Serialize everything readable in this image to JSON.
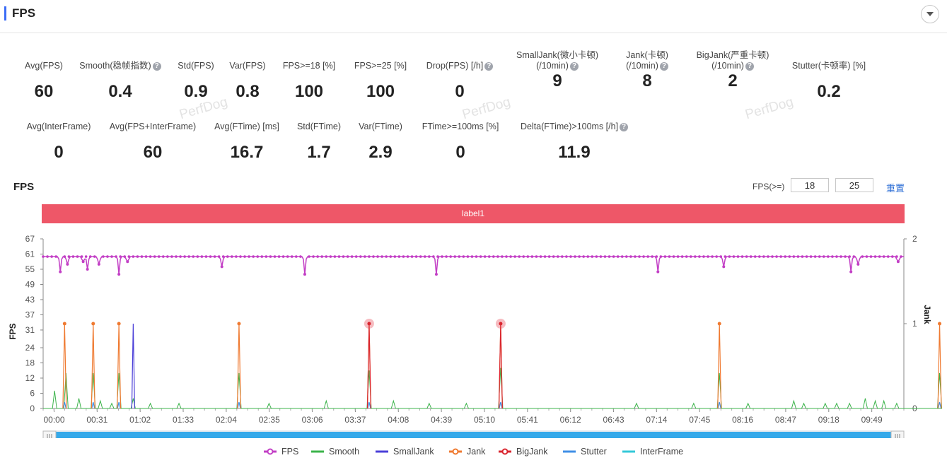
{
  "header": {
    "title": "FPS"
  },
  "stats_row1": [
    {
      "label": "Avg(FPS)",
      "value": "60",
      "help": false
    },
    {
      "label": "Smooth(稳帧指数)",
      "value": "0.4",
      "help": true
    },
    {
      "label": "Std(FPS)",
      "value": "0.9",
      "help": false
    },
    {
      "label": "Var(FPS)",
      "value": "0.8",
      "help": false
    },
    {
      "label": "FPS>=18 [%]",
      "value": "100",
      "help": false
    },
    {
      "label": "FPS>=25 [%]",
      "value": "100",
      "help": false
    },
    {
      "label": "Drop(FPS) [/h]",
      "value": "0",
      "help": true
    },
    {
      "label": "SmallJank(微小卡顿)",
      "label2": "(/10min)",
      "value": "9",
      "help": true
    },
    {
      "label": "Jank(卡顿)",
      "label2": "(/10min)",
      "value": "8",
      "help": true
    },
    {
      "label": "BigJank(严重卡顿)",
      "label2": "(/10min)",
      "value": "2",
      "help": true
    },
    {
      "label": "Stutter(卡顿率) [%]",
      "value": "0.2",
      "help": false
    }
  ],
  "stats_row2": [
    {
      "label": "Avg(InterFrame)",
      "value": "0",
      "help": false
    },
    {
      "label": "Avg(FPS+InterFrame)",
      "value": "60",
      "help": false
    },
    {
      "label": "Avg(FTime) [ms]",
      "value": "16.7",
      "help": false
    },
    {
      "label": "Std(FTime)",
      "value": "1.7",
      "help": false
    },
    {
      "label": "Var(FTime)",
      "value": "2.9",
      "help": false
    },
    {
      "label": "FTime>=100ms [%]",
      "value": "0",
      "help": false
    },
    {
      "label": "Delta(FTime)>100ms [/h]",
      "value": "11.9",
      "help": true
    }
  ],
  "watermark": "PerfDog",
  "chart_section": {
    "title": "FPS",
    "threshold_label": "FPS(>=)",
    "threshold1": "18",
    "threshold2": "25",
    "reset_label": "重置",
    "label_bar": "label1"
  },
  "chart_data": {
    "type": "line",
    "x_ticks": [
      "00:00",
      "00:31",
      "01:02",
      "01:33",
      "02:04",
      "02:35",
      "03:06",
      "03:37",
      "04:08",
      "04:39",
      "05:10",
      "05:41",
      "06:12",
      "06:43",
      "07:14",
      "07:45",
      "08:16",
      "08:47",
      "09:18",
      "09:49"
    ],
    "x_range_seconds": [
      0,
      602
    ],
    "ylabel": "FPS",
    "y_ticks": [
      0,
      6,
      12,
      18,
      24,
      31,
      37,
      43,
      49,
      55,
      61,
      67
    ],
    "ylim": [
      0,
      67
    ],
    "y2label": "Jank",
    "y2_ticks": [
      0,
      1,
      2
    ],
    "y2lim": [
      0,
      2
    ],
    "fps_baseline": 60,
    "fps_dips": [
      {
        "t": 12,
        "v": 54
      },
      {
        "t": 17,
        "v": 57
      },
      {
        "t": 28,
        "v": 58
      },
      {
        "t": 31,
        "v": 55
      },
      {
        "t": 39,
        "v": 57
      },
      {
        "t": 53,
        "v": 53
      },
      {
        "t": 59,
        "v": 58
      },
      {
        "t": 125,
        "v": 56
      },
      {
        "t": 183,
        "v": 53
      },
      {
        "t": 275,
        "v": 53
      },
      {
        "t": 430,
        "v": 54
      },
      {
        "t": 476,
        "v": 56
      },
      {
        "t": 565,
        "v": 54
      },
      {
        "t": 570,
        "v": 57
      },
      {
        "t": 598,
        "v": 58
      }
    ],
    "jank_events_seconds": [
      15,
      35,
      53,
      137,
      228,
      320,
      473,
      627
    ],
    "bigjank_events_seconds": [
      228,
      320
    ],
    "smalljank_events_seconds": [
      63
    ],
    "smooth_spikes": [
      {
        "t": 8,
        "v": 7
      },
      {
        "t": 16,
        "v": 14
      },
      {
        "t": 25,
        "v": 4
      },
      {
        "t": 35,
        "v": 14
      },
      {
        "t": 40,
        "v": 3
      },
      {
        "t": 48,
        "v": 2
      },
      {
        "t": 53,
        "v": 14
      },
      {
        "t": 63,
        "v": 4
      },
      {
        "t": 75,
        "v": 2
      },
      {
        "t": 95,
        "v": 2
      },
      {
        "t": 137,
        "v": 14
      },
      {
        "t": 158,
        "v": 2
      },
      {
        "t": 198,
        "v": 3
      },
      {
        "t": 228,
        "v": 15
      },
      {
        "t": 245,
        "v": 3
      },
      {
        "t": 270,
        "v": 2
      },
      {
        "t": 296,
        "v": 2
      },
      {
        "t": 320,
        "v": 16
      },
      {
        "t": 415,
        "v": 2
      },
      {
        "t": 455,
        "v": 2
      },
      {
        "t": 473,
        "v": 14
      },
      {
        "t": 493,
        "v": 2
      },
      {
        "t": 525,
        "v": 3
      },
      {
        "t": 532,
        "v": 2
      },
      {
        "t": 547,
        "v": 2
      },
      {
        "t": 555,
        "v": 2
      },
      {
        "t": 564,
        "v": 2
      },
      {
        "t": 575,
        "v": 4
      },
      {
        "t": 582,
        "v": 3
      },
      {
        "t": 588,
        "v": 3
      },
      {
        "t": 597,
        "v": 2
      },
      {
        "t": 627,
        "v": 14
      }
    ],
    "series": [
      {
        "name": "FPS",
        "color": "#c23ec5"
      },
      {
        "name": "Smooth",
        "color": "#3cb44b"
      },
      {
        "name": "SmallJank",
        "color": "#4b3fd8"
      },
      {
        "name": "Jank",
        "color": "#ef7a31"
      },
      {
        "name": "BigJank",
        "color": "#d9252e"
      },
      {
        "name": "Stutter",
        "color": "#3f8fe6"
      },
      {
        "name": "InterFrame",
        "color": "#34c8d8"
      }
    ],
    "grid": false,
    "legend": "bottom"
  }
}
